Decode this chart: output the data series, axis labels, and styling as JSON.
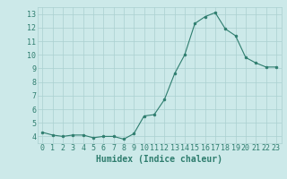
{
  "xlabel": "Humidex (Indice chaleur)",
  "x_values": [
    0,
    1,
    2,
    3,
    4,
    5,
    6,
    7,
    8,
    9,
    10,
    11,
    12,
    13,
    14,
    15,
    16,
    17,
    18,
    19,
    20,
    21,
    22,
    23
  ],
  "y_values": [
    4.3,
    4.1,
    4.0,
    4.1,
    4.1,
    3.9,
    4.0,
    4.0,
    3.8,
    4.2,
    5.5,
    5.6,
    6.7,
    8.6,
    10.0,
    12.3,
    12.8,
    13.1,
    11.9,
    11.4,
    9.8,
    9.4,
    9.1,
    9.1
  ],
  "line_color": "#2e7d6e",
  "marker": "o",
  "marker_size": 2.0,
  "bg_color": "#cce9e9",
  "grid_color": "#aad0d0",
  "tick_label_color": "#2e7d6e",
  "xlabel_color": "#2e7d6e",
  "ylim": [
    3.5,
    13.5
  ],
  "yticks": [
    4,
    5,
    6,
    7,
    8,
    9,
    10,
    11,
    12,
    13
  ],
  "xticks": [
    0,
    1,
    2,
    3,
    4,
    5,
    6,
    7,
    8,
    9,
    10,
    11,
    12,
    13,
    14,
    15,
    16,
    17,
    18,
    19,
    20,
    21,
    22,
    23
  ],
  "tick_font_size": 6.0,
  "label_font_size": 7.0
}
